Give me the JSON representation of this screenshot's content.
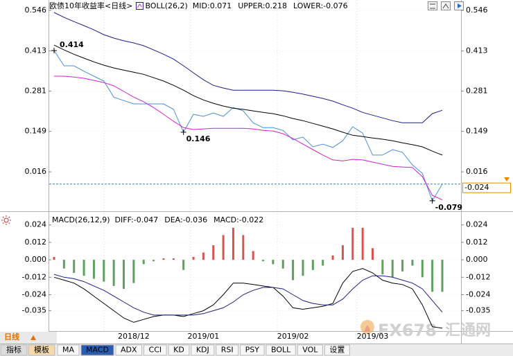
{
  "chart_data": [
    {
      "type": "line",
      "indicator": "BOLL(26,2)",
      "period": "<日线>",
      "ylim": [
        -0.102,
        0.58
      ],
      "yticks": [
        0.546,
        0.413,
        0.281,
        0.149,
        0.016
      ],
      "grid": true,
      "high_color": "#e03030",
      "low_color": "#3a9a3a",
      "last_color": "#e88a00",
      "series": [
        {
          "name": "欧债10年收益率",
          "color": "#4a8fd8",
          "values": [
            0.414,
            0.364,
            0.364,
            0.346,
            0.33,
            0.314,
            0.261,
            0.25,
            0.239,
            0.239,
            0.239,
            0.239,
            0.221,
            0.146,
            0.205,
            0.198,
            0.209,
            0.198,
            0.227,
            0.216,
            0.177,
            0.161,
            0.161,
            0.152,
            0.121,
            0.13,
            0.098,
            0.107,
            0.096,
            0.118,
            0.164,
            0.143,
            0.071,
            0.071,
            0.089,
            0.08,
            0.039,
            0.011,
            -0.079,
            -0.024
          ]
        },
        {
          "name": "MID:0.071",
          "color": "#000000",
          "values": [
            0.432,
            0.416,
            0.402,
            0.389,
            0.377,
            0.366,
            0.357,
            0.35,
            0.343,
            0.336,
            0.325,
            0.314,
            0.3,
            0.284,
            0.266,
            0.252,
            0.241,
            0.232,
            0.225,
            0.221,
            0.216,
            0.211,
            0.207,
            0.2,
            0.191,
            0.184,
            0.175,
            0.166,
            0.157,
            0.146,
            0.136,
            0.132,
            0.127,
            0.123,
            0.118,
            0.111,
            0.105,
            0.098,
            0.084,
            0.071
          ]
        },
        {
          "name": "UPPER:0.218",
          "color": "#1c1c8a",
          "values": [
            0.539,
            0.523,
            0.509,
            0.496,
            0.482,
            0.466,
            0.455,
            0.446,
            0.439,
            0.43,
            0.416,
            0.402,
            0.386,
            0.364,
            0.341,
            0.318,
            0.3,
            0.291,
            0.284,
            0.284,
            0.284,
            0.284,
            0.284,
            0.282,
            0.277,
            0.271,
            0.264,
            0.257,
            0.248,
            0.236,
            0.225,
            0.211,
            0.202,
            0.193,
            0.184,
            0.177,
            0.177,
            0.177,
            0.207,
            0.218
          ]
        },
        {
          "name": "LOWER:-0.076",
          "color": "#d020d0",
          "values": [
            0.33,
            0.33,
            0.327,
            0.323,
            0.316,
            0.309,
            0.298,
            0.28,
            0.261,
            0.246,
            0.227,
            0.205,
            0.182,
            0.161,
            0.155,
            0.157,
            0.159,
            0.159,
            0.159,
            0.159,
            0.157,
            0.152,
            0.15,
            0.141,
            0.125,
            0.107,
            0.089,
            0.071,
            0.055,
            0.052,
            0.057,
            0.055,
            0.048,
            0.041,
            0.034,
            0.032,
            0.03,
            0,
            -0.061,
            -0.076
          ]
        }
      ]
    },
    {
      "type": "macd",
      "title": "MACD(26,12,9)",
      "ylim": [
        -0.049,
        0.031
      ],
      "yticks": [
        0.024,
        0.012,
        {
          "value": 0,
          "label": "0.000"
        },
        -0.012,
        -0.024,
        -0.035
      ],
      "grid": true,
      "categories": [
        null,
        null,
        null,
        null,
        null,
        null,
        null,
        null,
        "2018/12",
        null,
        null,
        null,
        null,
        null,
        null,
        "2019/01",
        null,
        null,
        null,
        null,
        null,
        null,
        null,
        null,
        "2019/02",
        null,
        null,
        null,
        null,
        null,
        null,
        null,
        "2019/03",
        null,
        null,
        null,
        null,
        null,
        null,
        null
      ],
      "series": [
        {
          "name": "DIFF:-0.047",
          "color": "#000000",
          "values": [
            -0.012,
            -0.014,
            -0.016,
            -0.02,
            -0.025,
            -0.03,
            -0.035,
            -0.04,
            -0.043,
            -0.041,
            -0.039,
            -0.038,
            -0.038,
            -0.039,
            -0.037,
            -0.035,
            -0.031,
            -0.024,
            -0.016,
            -0.016,
            -0.017,
            -0.018,
            -0.019,
            -0.025,
            -0.033,
            -0.034,
            -0.033,
            -0.032,
            -0.03,
            -0.016,
            -0.008,
            -0.006,
            -0.009,
            -0.014,
            -0.016,
            -0.017,
            -0.02,
            -0.031,
            -0.046,
            -0.047
          ]
        },
        {
          "name": "DEA:-0.036",
          "color": "#1c1c8a",
          "values": [
            -0.01,
            -0.012,
            -0.013,
            -0.015,
            -0.018,
            -0.021,
            -0.025,
            -0.029,
            -0.033,
            -0.036,
            -0.038,
            -0.038,
            -0.038,
            -0.038,
            -0.038,
            -0.037,
            -0.035,
            -0.033,
            -0.029,
            -0.024,
            -0.021,
            -0.019,
            -0.019,
            -0.02,
            -0.024,
            -0.028,
            -0.03,
            -0.031,
            -0.031,
            -0.027,
            -0.02,
            -0.014,
            -0.011,
            -0.011,
            -0.012,
            -0.014,
            -0.016,
            -0.02,
            -0.028,
            -0.036
          ]
        },
        {
          "name": "MACD:-0.022",
          "color": "#d020d0",
          "up_color": "#d9534f",
          "down_color": "#5f9f5f",
          "values": [
            0.002,
            -0.006,
            -0.009,
            -0.011,
            -0.013,
            -0.015,
            -0.018,
            -0.02,
            -0.016,
            -0.003,
            -0.001,
            0.001,
            0.001,
            -0.007,
            0.002,
            0.005,
            0.01,
            0.017,
            0.022,
            0.017,
            0.006,
            -0.001,
            -0.003,
            -0.006,
            -0.014,
            -0.011,
            -0.007,
            -0.004,
            0.003,
            0.01,
            0.022,
            0.022,
            0.008,
            -0.01,
            -0.012,
            -0.008,
            -0.004,
            -0.012,
            -0.022,
            -0.022
          ]
        }
      ]
    }
  ],
  "toolbar": {
    "period": "日线",
    "left_tabs": [
      "指标",
      "模板"
    ],
    "tabs": [
      "MA",
      "MACD",
      "ADX",
      "CCI",
      "KD",
      "KDJ",
      "RSI",
      "PSY",
      "BOLL",
      "VOL",
      "设置"
    ],
    "active_tab": 1
  },
  "watermark": {
    "brand": "FX678",
    "name": "汇通网"
  }
}
